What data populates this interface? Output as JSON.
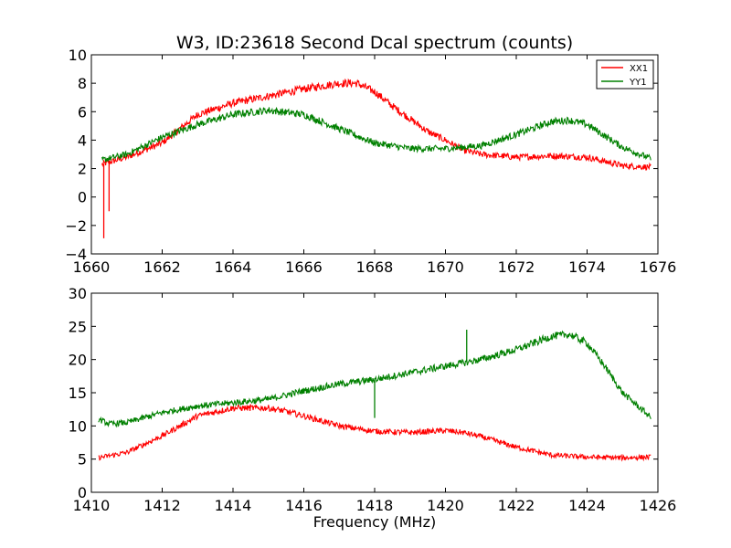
{
  "chart_data": [
    {
      "type": "line",
      "title": "W3, ID:23618 Second Dcal spectrum (counts)",
      "xlabel": "",
      "ylabel": "",
      "xlim": [
        1660,
        1676
      ],
      "ylim": [
        -4,
        10
      ],
      "xticks": [
        "1660",
        "1662",
        "1664",
        "1666",
        "1668",
        "1670",
        "1672",
        "1674",
        "1676"
      ],
      "yticks": [
        "−4",
        "−2",
        "0",
        "2",
        "4",
        "6",
        "8",
        "10"
      ],
      "grid": false,
      "legend": "top-right",
      "series": [
        {
          "name": "XX1",
          "color": "#ff0000",
          "x": [
            1660.3,
            1661.0,
            1662.0,
            1663.0,
            1664.0,
            1665.0,
            1666.0,
            1667.0,
            1667.5,
            1668.0,
            1668.5,
            1669.0,
            1669.5,
            1670.0,
            1670.5,
            1671.0,
            1672.0,
            1673.0,
            1674.0,
            1675.0,
            1675.8
          ],
          "values": [
            2.3,
            2.8,
            3.8,
            5.8,
            6.6,
            7.1,
            7.6,
            8.0,
            8.0,
            7.4,
            6.4,
            5.5,
            4.6,
            4.0,
            3.3,
            3.0,
            2.8,
            2.9,
            2.8,
            2.2,
            2.1
          ],
          "spikes": [
            [
              1660.35,
              -2.9
            ],
            [
              1660.5,
              -1.0
            ]
          ]
        },
        {
          "name": "YY1",
          "color": "#008000",
          "x": [
            1660.3,
            1661.0,
            1662.0,
            1663.0,
            1664.0,
            1665.0,
            1666.0,
            1667.0,
            1668.0,
            1669.0,
            1670.0,
            1671.0,
            1672.0,
            1673.0,
            1673.5,
            1674.0,
            1675.0,
            1675.8
          ],
          "values": [
            2.6,
            3.0,
            4.2,
            5.1,
            5.8,
            6.1,
            5.8,
            4.8,
            3.8,
            3.4,
            3.4,
            3.6,
            4.4,
            5.3,
            5.4,
            5.1,
            3.5,
            2.7
          ]
        }
      ]
    },
    {
      "type": "line",
      "title": "",
      "xlabel": "Frequency (MHz)",
      "ylabel": "",
      "xlim": [
        1410,
        1426
      ],
      "ylim": [
        0,
        30
      ],
      "xticks": [
        "1410",
        "1412",
        "1414",
        "1416",
        "1418",
        "1420",
        "1422",
        "1424",
        "1426"
      ],
      "yticks": [
        "0",
        "5",
        "10",
        "15",
        "20",
        "25",
        "30"
      ],
      "grid": false,
      "series": [
        {
          "color": "#ff0000",
          "x": [
            1410.2,
            1411.0,
            1412.0,
            1413.0,
            1414.0,
            1415.0,
            1415.5,
            1416.0,
            1417.0,
            1418.0,
            1419.0,
            1420.0,
            1420.5,
            1421.0,
            1422.0,
            1423.0,
            1424.0,
            1425.0,
            1425.8
          ],
          "values": [
            5.2,
            6.0,
            8.5,
            11.5,
            12.7,
            12.7,
            12.2,
            11.5,
            10.0,
            9.2,
            9.0,
            9.3,
            9.0,
            8.4,
            6.8,
            5.6,
            5.3,
            5.2,
            5.3
          ]
        },
        {
          "color": "#008000",
          "x": [
            1410.2,
            1410.5,
            1411.0,
            1412.0,
            1413.0,
            1414.0,
            1415.0,
            1416.0,
            1417.0,
            1418.0,
            1419.0,
            1420.0,
            1421.0,
            1422.0,
            1423.0,
            1423.5,
            1424.0,
            1424.5,
            1425.0,
            1425.8
          ],
          "values": [
            11.0,
            10.3,
            10.5,
            12.0,
            13.0,
            13.5,
            14.0,
            15.3,
            16.3,
            17.0,
            18.0,
            19.0,
            20.0,
            21.5,
            23.5,
            23.8,
            22.5,
            19.0,
            15.0,
            11.3
          ],
          "spikes": [
            [
              1418.0,
              11.2
            ],
            [
              1420.6,
              24.5
            ]
          ]
        }
      ]
    }
  ]
}
